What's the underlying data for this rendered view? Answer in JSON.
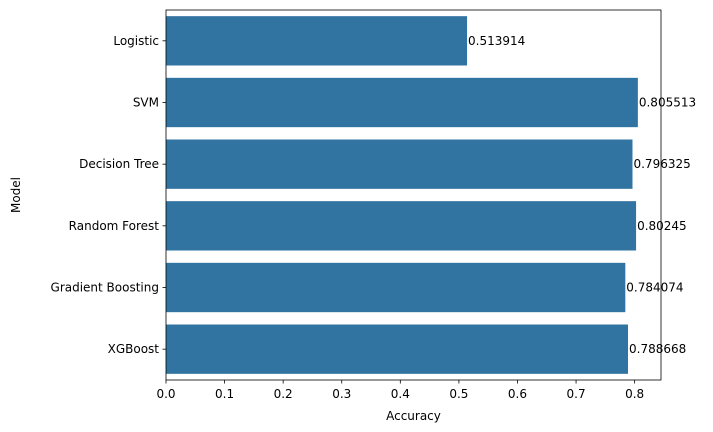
{
  "chart_data": {
    "type": "bar",
    "orientation": "horizontal",
    "categories": [
      "Logistic",
      "SVM",
      "Decision Tree",
      "Random Forest",
      "Gradient Boosting",
      "XGBoost"
    ],
    "values": [
      0.513914,
      0.805513,
      0.796325,
      0.80245,
      0.784074,
      0.788668
    ],
    "data_labels": [
      "0.513914",
      "0.805513",
      "0.796325",
      "0.80245",
      "0.784074",
      "0.788668"
    ],
    "xlabel": "Accuracy",
    "ylabel": "Model",
    "xlim": [
      0.0,
      0.845
    ],
    "xticks": [
      0.0,
      0.1,
      0.2,
      0.3,
      0.4,
      0.5,
      0.6,
      0.7,
      0.8
    ],
    "xtick_labels": [
      "0.0",
      "0.1",
      "0.2",
      "0.3",
      "0.4",
      "0.5",
      "0.6",
      "0.7",
      "0.8"
    ],
    "bar_color": "#3274a1",
    "grid": false,
    "legend": "none"
  }
}
